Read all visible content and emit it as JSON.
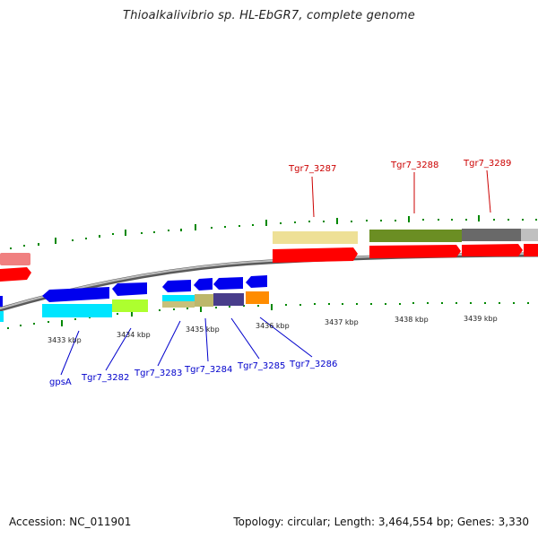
{
  "title": "Thioalkalivibrio sp. HL-EbGR7, complete genome",
  "accession": "Accession: NC_011901",
  "summary": "Topology: circular; Length: 3,464,554 bp; Genes: 3,330",
  "kbp_ticks": [
    "3433 kbp",
    "3434 kbp",
    "3435 kbp",
    "3436 kbp",
    "3437 kbp",
    "3438 kbp",
    "3439 kbp"
  ],
  "genes_forward": [
    "Tgr7_3287",
    "Tgr7_3288",
    "Tgr7_3289"
  ],
  "genes_reverse": [
    "gpsA",
    "Tgr7_3282",
    "Tgr7_3283",
    "Tgr7_3284",
    "Tgr7_3285",
    "Tgr7_3286"
  ],
  "colors": {
    "label_forward": "#cc0000",
    "label_reverse": "#0000cc",
    "cds_forward": "#ff0000",
    "cds_reverse": "#0000ee",
    "backbone": "#888888",
    "tick": "#008800"
  }
}
